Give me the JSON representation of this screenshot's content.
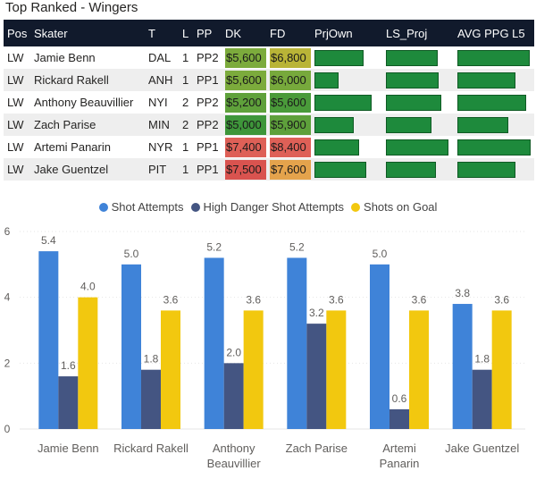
{
  "title": "Top Ranked - Wingers",
  "table": {
    "headers": [
      "Pos",
      "Skater",
      "T",
      "L",
      "PP",
      "DK",
      "FD",
      "PrjOwn",
      "LS_Proj",
      "AVG PPG L5"
    ],
    "rows": [
      {
        "pos": "LW",
        "skater": "Jamie Benn",
        "team": "DAL",
        "line": "1",
        "pp": "PP2",
        "dk": "$5,600",
        "fd": "$6,800",
        "dk_color": "#7cab3c",
        "fd_color": "#b9b437",
        "prjown": 0.74,
        "ls_proj": 0.78,
        "avg_ppg": 0.97
      },
      {
        "pos": "LW",
        "skater": "Rickard Rakell",
        "team": "ANH",
        "line": "1",
        "pp": "PP1",
        "dk": "$5,600",
        "fd": "$6,000",
        "dk_color": "#7cab3c",
        "fd_color": "#77a93c",
        "prjown": 0.36,
        "ls_proj": 0.8,
        "avg_ppg": 0.77
      },
      {
        "pos": "LW",
        "skater": "Anthony Beauvillier",
        "team": "NYI",
        "line": "2",
        "pp": "PP2",
        "dk": "$5,200",
        "fd": "$5,600",
        "dk_color": "#5fa13b",
        "fd_color": "#4a9a3a",
        "prjown": 0.87,
        "ls_proj": 0.84,
        "avg_ppg": 0.92
      },
      {
        "pos": "LW",
        "skater": "Zach Parise",
        "team": "MIN",
        "line": "2",
        "pp": "PP2",
        "dk": "$5,000",
        "fd": "$5,900",
        "dk_color": "#3e963a",
        "fd_color": "#5ea03b",
        "prjown": 0.6,
        "ls_proj": 0.69,
        "avg_ppg": 0.68
      },
      {
        "pos": "LW",
        "skater": "Artemi Panarin",
        "team": "NYR",
        "line": "1",
        "pp": "PP1",
        "dk": "$7,400",
        "fd": "$8,400",
        "dk_color": "#de6057",
        "fd_color": "#de6057",
        "prjown": 0.67,
        "ls_proj": 0.95,
        "avg_ppg": 0.98
      },
      {
        "pos": "LW",
        "skater": "Jake Guentzel",
        "team": "PIT",
        "line": "1",
        "pp": "PP1",
        "dk": "$7,500",
        "fd": "$7,600",
        "dk_color": "#d9534f",
        "fd_color": "#e4a34c",
        "prjown": 0.78,
        "ls_proj": 0.76,
        "avg_ppg": 0.77
      }
    ]
  },
  "colors": {
    "header_bg": "#111a2c",
    "bar_green": "#1e8a3c",
    "shot_attempts": "#3f83d8",
    "high_danger": "#445582",
    "shots_on_goal": "#f2c80f"
  },
  "chart_data": {
    "type": "bar",
    "categories": [
      "Jamie Benn",
      "Rickard Rakell",
      "Anthony Beauvillier",
      "Zach Parise",
      "Artemi Panarin",
      "Jake Guentzel"
    ],
    "category_lines": [
      [
        "Jamie Benn"
      ],
      [
        "Rickard Rakell"
      ],
      [
        "Anthony",
        "Beauvillier"
      ],
      [
        "Zach Parise"
      ],
      [
        "Artemi",
        "Panarin"
      ],
      [
        "Jake Guentzel"
      ]
    ],
    "series": [
      {
        "name": "Shot Attempts",
        "values": [
          5.4,
          5.0,
          5.2,
          5.2,
          5.0,
          3.8
        ],
        "labels": [
          "5.4",
          "5.0",
          "5.2",
          "5.2",
          "5.0",
          "3.8"
        ]
      },
      {
        "name": "High Danger Shot Attempts",
        "values": [
          1.6,
          1.8,
          2.0,
          3.2,
          0.6,
          1.8
        ],
        "labels": [
          "1.6",
          "1.8",
          "2.0",
          "3.2",
          "0.6",
          "1.8"
        ]
      },
      {
        "name": "Shots on Goal",
        "values": [
          4.0,
          3.6,
          3.6,
          3.6,
          3.6,
          3.6
        ],
        "labels": [
          "4.0",
          "3.6",
          "3.6",
          "3.6",
          "3.6",
          "3.6"
        ]
      }
    ],
    "yticks": [
      "0",
      "2",
      "4",
      "6"
    ],
    "ylim": [
      0,
      6
    ],
    "grid": true,
    "legend": "top-center"
  }
}
